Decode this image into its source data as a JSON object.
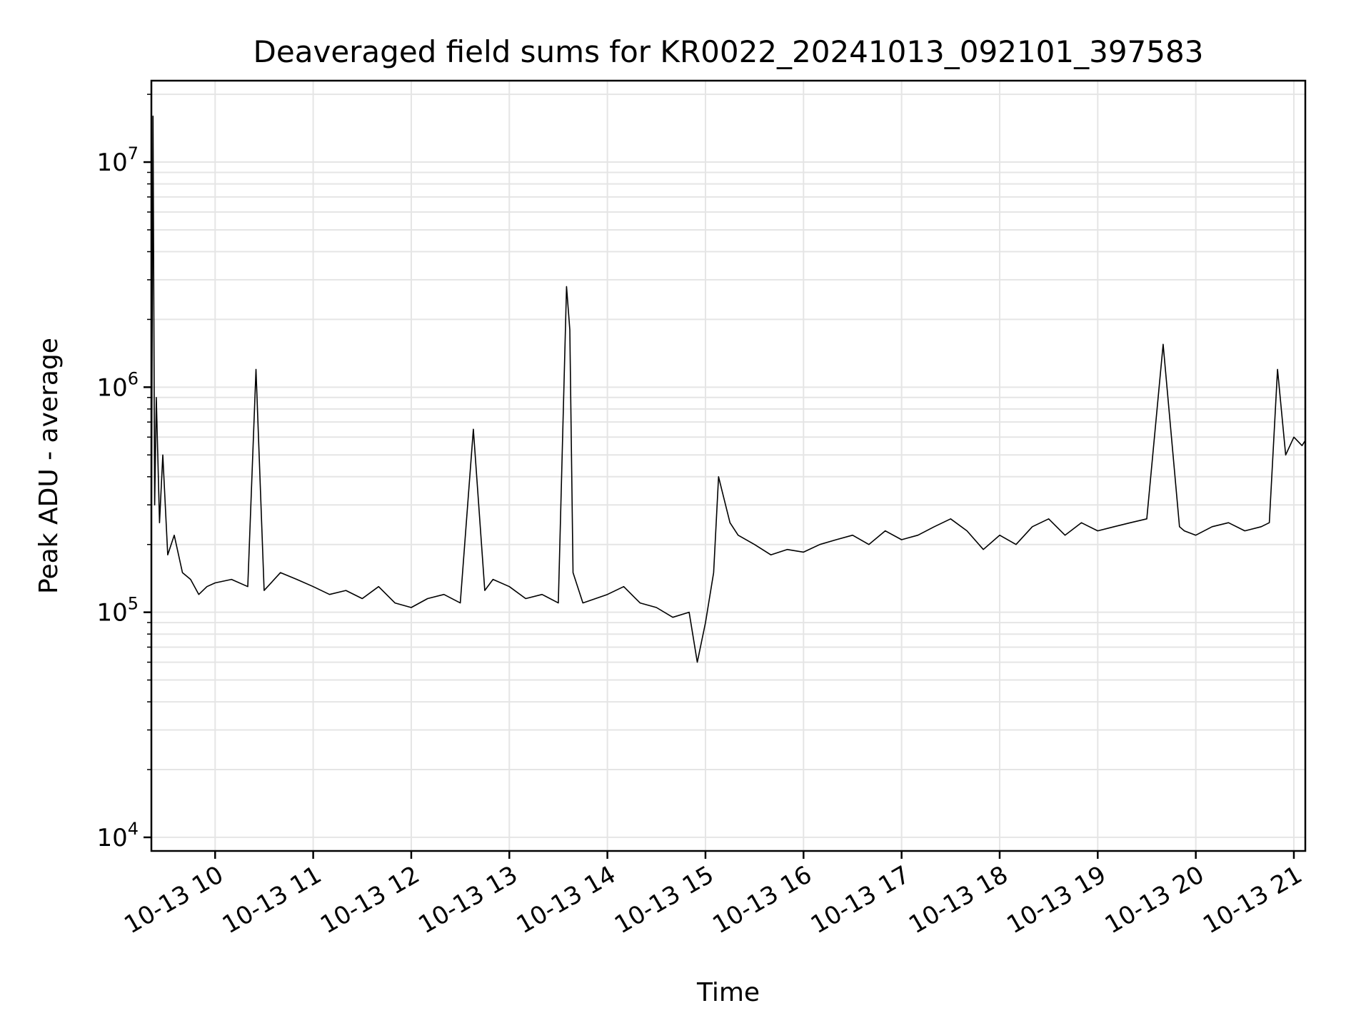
{
  "chart_data": {
    "type": "line",
    "title": "Deaveraged field sums for KR0022_20241013_092101_397583",
    "xlabel": "Time",
    "ylabel": "Peak ADU - average",
    "yscale": "log",
    "ylim": [
      8700,
      23000000
    ],
    "xlim": [
      "2024-10-13 09:21",
      "2024-10-13 21:07"
    ],
    "grid": true,
    "line_color": "#000000",
    "x_ticks": [
      {
        "t": "2024-10-13 10:00",
        "label": "10-13 10"
      },
      {
        "t": "2024-10-13 11:00",
        "label": "10-13 11"
      },
      {
        "t": "2024-10-13 12:00",
        "label": "10-13 12"
      },
      {
        "t": "2024-10-13 13:00",
        "label": "10-13 13"
      },
      {
        "t": "2024-10-13 14:00",
        "label": "10-13 14"
      },
      {
        "t": "2024-10-13 15:00",
        "label": "10-13 15"
      },
      {
        "t": "2024-10-13 16:00",
        "label": "10-13 16"
      },
      {
        "t": "2024-10-13 17:00",
        "label": "10-13 17"
      },
      {
        "t": "2024-10-13 18:00",
        "label": "10-13 18"
      },
      {
        "t": "2024-10-13 19:00",
        "label": "10-13 19"
      },
      {
        "t": "2024-10-13 20:00",
        "label": "10-13 20"
      },
      {
        "t": "2024-10-13 21:00",
        "label": "10-13 21"
      }
    ],
    "y_ticks": [
      {
        "value": 10000,
        "base": "10",
        "exp": "4"
      },
      {
        "value": 100000,
        "base": "10",
        "exp": "5"
      },
      {
        "value": 1000000,
        "base": "10",
        "exp": "6"
      },
      {
        "value": 10000000,
        "base": "10",
        "exp": "7"
      }
    ],
    "series": [
      {
        "x": [
          "2024-10-13 09:21",
          "2024-10-13 09:22",
          "2024-10-13 09:23",
          "2024-10-13 09:24",
          "2024-10-13 09:26",
          "2024-10-13 09:28",
          "2024-10-13 09:31",
          "2024-10-13 09:35",
          "2024-10-13 09:40",
          "2024-10-13 09:45",
          "2024-10-13 09:50",
          "2024-10-13 09:55",
          "2024-10-13 10:00",
          "2024-10-13 10:10",
          "2024-10-13 10:20",
          "2024-10-13 10:25",
          "2024-10-13 10:30",
          "2024-10-13 10:40",
          "2024-10-13 10:50",
          "2024-10-13 11:00",
          "2024-10-13 11:10",
          "2024-10-13 11:20",
          "2024-10-13 11:30",
          "2024-10-13 11:40",
          "2024-10-13 11:50",
          "2024-10-13 12:00",
          "2024-10-13 12:10",
          "2024-10-13 12:20",
          "2024-10-13 12:30",
          "2024-10-13 12:38",
          "2024-10-13 12:45",
          "2024-10-13 12:50",
          "2024-10-13 13:00",
          "2024-10-13 13:10",
          "2024-10-13 13:20",
          "2024-10-13 13:30",
          "2024-10-13 13:35",
          "2024-10-13 13:37",
          "2024-10-13 13:39",
          "2024-10-13 13:45",
          "2024-10-13 14:00",
          "2024-10-13 14:10",
          "2024-10-13 14:20",
          "2024-10-13 14:30",
          "2024-10-13 14:40",
          "2024-10-13 14:50",
          "2024-10-13 14:55",
          "2024-10-13 15:00",
          "2024-10-13 15:05",
          "2024-10-13 15:08",
          "2024-10-13 15:10",
          "2024-10-13 15:15",
          "2024-10-13 15:20",
          "2024-10-13 15:30",
          "2024-10-13 15:40",
          "2024-10-13 15:50",
          "2024-10-13 16:00",
          "2024-10-13 16:10",
          "2024-10-13 16:20",
          "2024-10-13 16:30",
          "2024-10-13 16:40",
          "2024-10-13 16:50",
          "2024-10-13 17:00",
          "2024-10-13 17:10",
          "2024-10-13 17:20",
          "2024-10-13 17:30",
          "2024-10-13 17:40",
          "2024-10-13 17:50",
          "2024-10-13 18:00",
          "2024-10-13 18:10",
          "2024-10-13 18:20",
          "2024-10-13 18:30",
          "2024-10-13 18:40",
          "2024-10-13 18:50",
          "2024-10-13 19:00",
          "2024-10-13 19:10",
          "2024-10-13 19:20",
          "2024-10-13 19:30",
          "2024-10-13 19:40",
          "2024-10-13 19:50",
          "2024-10-13 19:53",
          "2024-10-13 20:00",
          "2024-10-13 20:10",
          "2024-10-13 20:20",
          "2024-10-13 20:30",
          "2024-10-13 20:40",
          "2024-10-13 20:45",
          "2024-10-13 20:50",
          "2024-10-13 20:55",
          "2024-10-13 21:00",
          "2024-10-13 21:05",
          "2024-10-13 21:07"
        ],
        "y": [
          200000,
          16000000,
          300000,
          900000,
          250000,
          500000,
          180000,
          220000,
          150000,
          140000,
          120000,
          130000,
          135000,
          140000,
          130000,
          1200000,
          125000,
          150000,
          140000,
          130000,
          120000,
          125000,
          115000,
          130000,
          110000,
          105000,
          115000,
          120000,
          110000,
          650000,
          125000,
          140000,
          130000,
          115000,
          120000,
          110000,
          2800000,
          1800000,
          150000,
          110000,
          120000,
          130000,
          110000,
          105000,
          95000,
          100000,
          60000,
          90000,
          150000,
          400000,
          350000,
          250000,
          220000,
          200000,
          180000,
          190000,
          185000,
          200000,
          210000,
          220000,
          200000,
          230000,
          210000,
          220000,
          240000,
          260000,
          230000,
          190000,
          220000,
          200000,
          240000,
          260000,
          220000,
          250000,
          230000,
          240000,
          250000,
          260000,
          1550000,
          240000,
          230000,
          220000,
          240000,
          250000,
          230000,
          240000,
          250000,
          1200000,
          500000,
          600000,
          550000,
          580000
        ]
      }
    ]
  }
}
